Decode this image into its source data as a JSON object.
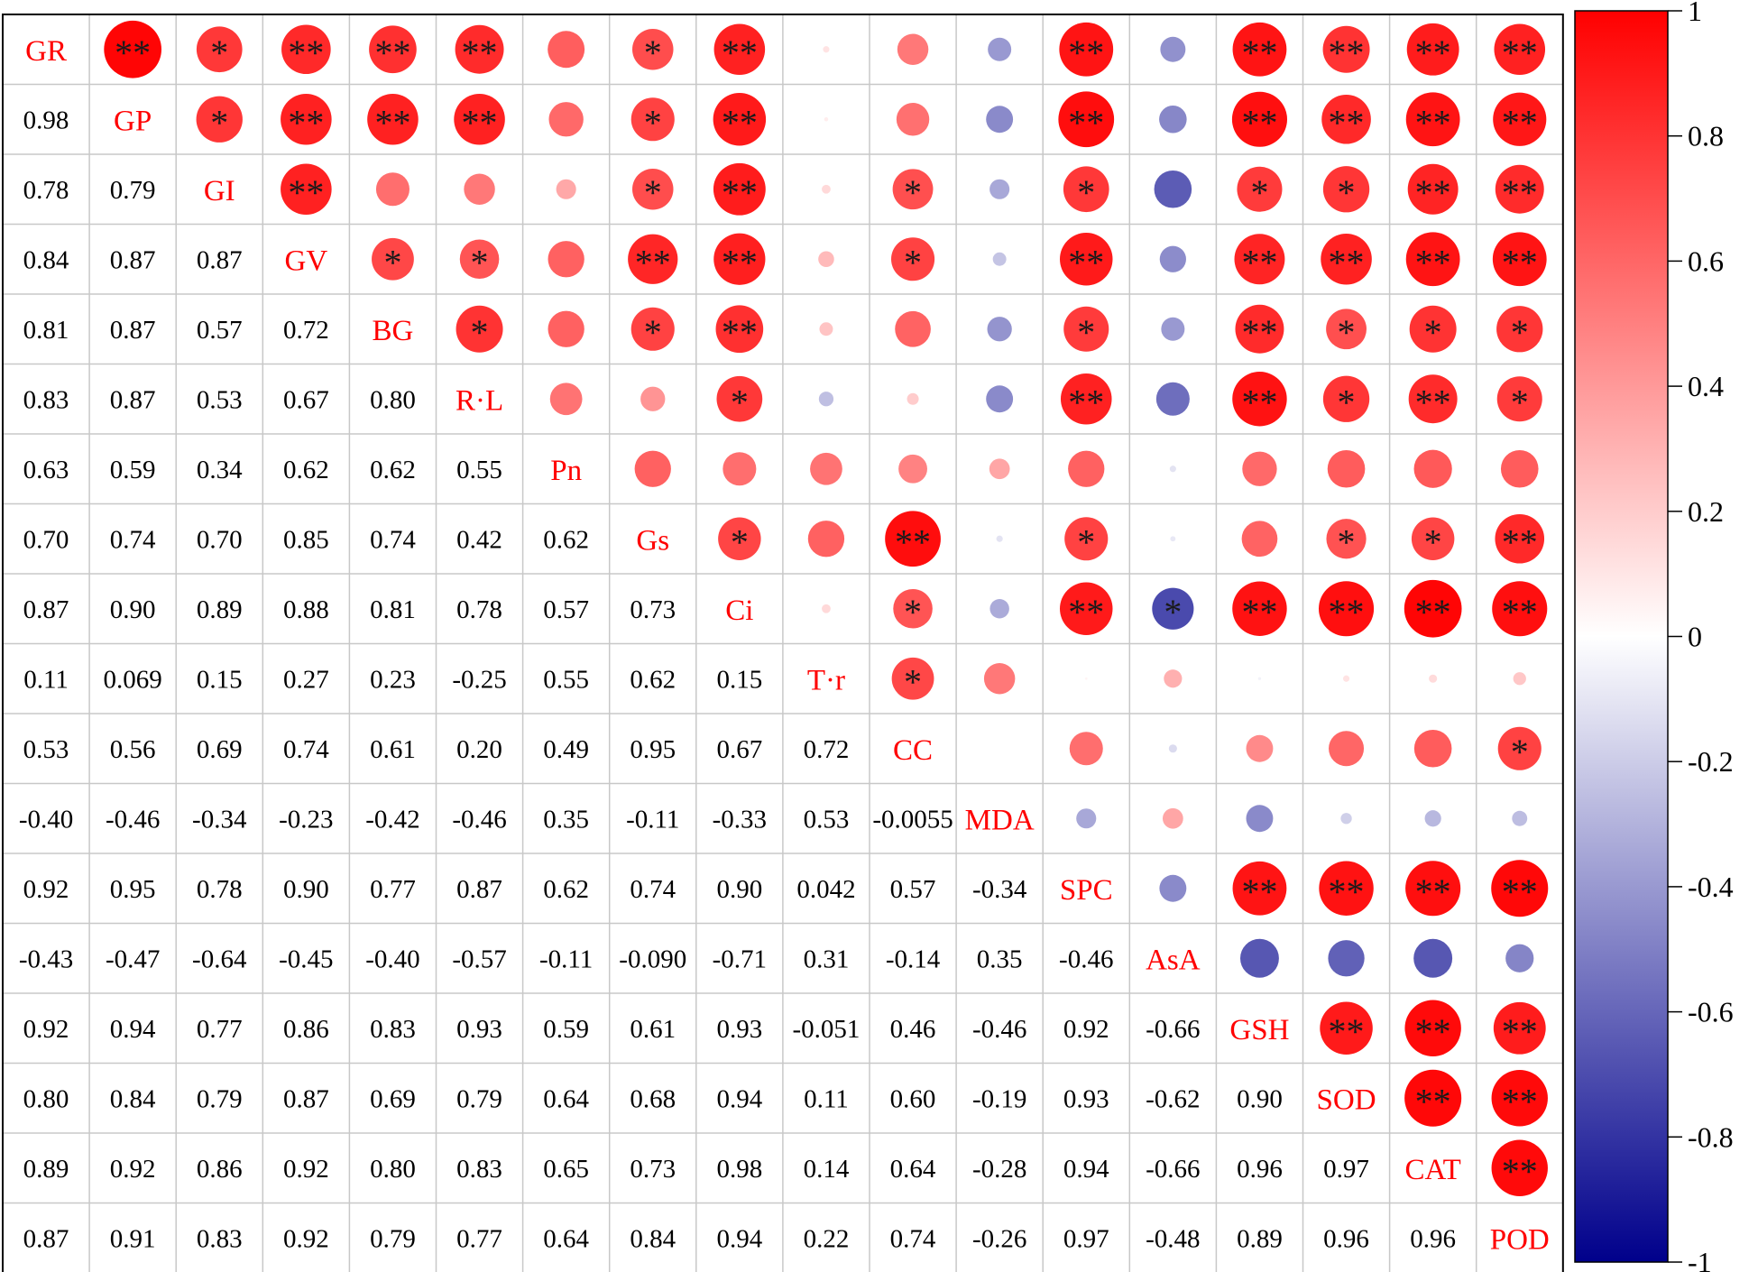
{
  "chart_data": {
    "type": "heatmap",
    "subtype": "correlation-matrix",
    "variables": [
      "GR",
      "GP",
      "GI",
      "GV",
      "BG",
      "R·L",
      "Pn",
      "Gs",
      "Ci",
      "T·r",
      "CC",
      "MDA",
      "SPC",
      "AsA",
      "GSH",
      "SOD",
      "CAT",
      "POD"
    ],
    "lower_triangle_labels": [
      [],
      [
        "0.98"
      ],
      [
        "0.78",
        "0.79"
      ],
      [
        "0.84",
        "0.87",
        "0.87"
      ],
      [
        "0.81",
        "0.87",
        "0.57",
        "0.72"
      ],
      [
        "0.83",
        "0.87",
        "0.53",
        "0.67",
        "0.80"
      ],
      [
        "0.63",
        "0.59",
        "0.34",
        "0.62",
        "0.62",
        "0.55"
      ],
      [
        "0.70",
        "0.74",
        "0.70",
        "0.85",
        "0.74",
        "0.42",
        "0.62"
      ],
      [
        "0.87",
        "0.90",
        "0.89",
        "0.88",
        "0.81",
        "0.78",
        "0.57",
        "0.73"
      ],
      [
        "0.11",
        "0.069",
        "0.15",
        "0.27",
        "0.23",
        "-0.25",
        "0.55",
        "0.62",
        "0.15"
      ],
      [
        "0.53",
        "0.56",
        "0.69",
        "0.74",
        "0.61",
        "0.20",
        "0.49",
        "0.95",
        "0.67",
        "0.72"
      ],
      [
        "-0.40",
        "-0.46",
        "-0.34",
        "-0.23",
        "-0.42",
        "-0.46",
        "0.35",
        "-0.11",
        "-0.33",
        "0.53",
        "-0.0055"
      ],
      [
        "0.92",
        "0.95",
        "0.78",
        "0.90",
        "0.77",
        "0.87",
        "0.62",
        "0.74",
        "0.90",
        "0.042",
        "0.57",
        "-0.34"
      ],
      [
        "-0.43",
        "-0.47",
        "-0.64",
        "-0.45",
        "-0.40",
        "-0.57",
        "-0.11",
        "-0.090",
        "-0.71",
        "0.31",
        "-0.14",
        "0.35",
        "-0.46"
      ],
      [
        "0.92",
        "0.94",
        "0.77",
        "0.86",
        "0.83",
        "0.93",
        "0.59",
        "0.61",
        "0.93",
        "-0.051",
        "0.46",
        "-0.46",
        "0.92",
        "-0.66"
      ],
      [
        "0.80",
        "0.84",
        "0.79",
        "0.87",
        "0.69",
        "0.79",
        "0.64",
        "0.68",
        "0.94",
        "0.11",
        "0.60",
        "-0.19",
        "0.93",
        "-0.62",
        "0.90"
      ],
      [
        "0.89",
        "0.92",
        "0.86",
        "0.92",
        "0.80",
        "0.83",
        "0.65",
        "0.73",
        "0.98",
        "0.14",
        "0.64",
        "-0.28",
        "0.94",
        "-0.66",
        "0.96",
        "0.97"
      ],
      [
        "0.87",
        "0.91",
        "0.83",
        "0.92",
        "0.79",
        "0.77",
        "0.64",
        "0.84",
        "0.94",
        "0.22",
        "0.74",
        "-0.26",
        "0.97",
        "-0.48",
        "0.89",
        "0.96",
        "0.96"
      ]
    ],
    "upper_triangle_significance": [
      [
        "**",
        "*",
        "**",
        "**",
        "**",
        "",
        "*",
        "**",
        "",
        "",
        "",
        "**",
        "",
        "**",
        "**",
        "**",
        "**"
      ],
      [
        "*",
        "**",
        "**",
        "**",
        "",
        "*",
        "**",
        "",
        "",
        "",
        "**",
        "",
        "**",
        "**",
        "**",
        "**"
      ],
      [
        "**",
        "",
        "",
        "",
        "*",
        "**",
        "",
        "*",
        "",
        "*",
        "",
        "*",
        "*",
        "**",
        "**"
      ],
      [
        "*",
        "*",
        "",
        "**",
        "**",
        "",
        "*",
        "",
        "**",
        "",
        "**",
        "**",
        "**",
        "**"
      ],
      [
        "*",
        "",
        "*",
        "**",
        "",
        "",
        "",
        "*",
        "",
        "**",
        "*",
        "*",
        "*"
      ],
      [
        "",
        "",
        "*",
        "",
        "",
        "",
        "**",
        "",
        "**",
        "*",
        "**",
        "*"
      ],
      [
        "",
        "",
        "",
        "",
        "",
        "",
        "",
        "",
        "",
        "",
        ""
      ],
      [
        "*",
        "",
        "**",
        "",
        "*",
        "",
        "",
        "*",
        "*",
        "**"
      ],
      [
        "",
        "*",
        "",
        "**",
        "*",
        "**",
        "**",
        "**",
        "**"
      ],
      [
        "*",
        "",
        "",
        "",
        "",
        "",
        "",
        ""
      ],
      [
        "",
        "",
        "",
        "",
        "",
        "",
        "*"
      ],
      [
        "",
        "",
        "",
        "",
        "",
        ""
      ],
      [
        "",
        "**",
        "**",
        "**",
        "**"
      ],
      [
        "",
        "",
        "",
        ""
      ],
      [
        "**",
        "**",
        "**"
      ],
      [
        "**",
        "**"
      ],
      [
        "**"
      ]
    ],
    "colorbar": {
      "ticks": [
        "1",
        "0.8",
        "0.6",
        "0.4",
        "0.2",
        "0",
        "-0.2",
        "-0.4",
        "-0.6",
        "-0.8",
        "-1"
      ],
      "range": [
        -1,
        1
      ],
      "colors": {
        "negative": "#00008b",
        "zero": "#ffffff",
        "positive": "#ff0000"
      }
    },
    "label_color": "#ff0000",
    "significance_legend": [
      "*",
      "**"
    ]
  }
}
